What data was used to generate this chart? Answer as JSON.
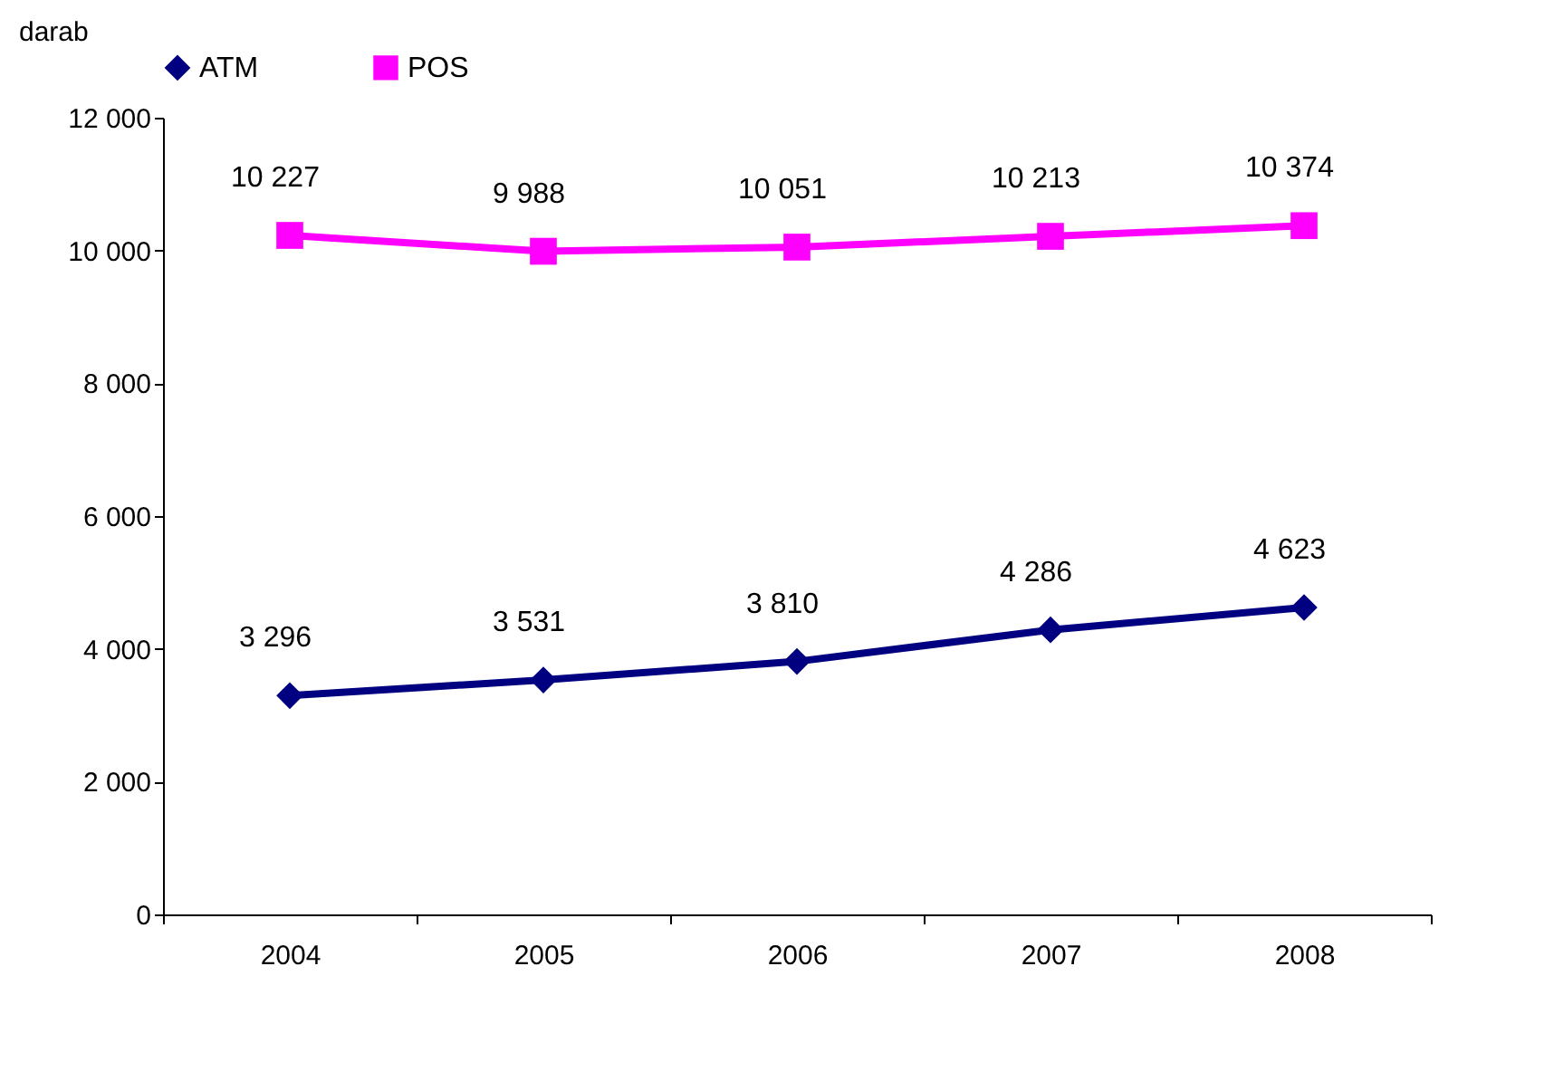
{
  "chart_data": {
    "type": "line",
    "ylabel": "darab",
    "categories": [
      "2004",
      "2005",
      "2006",
      "2007",
      "2008"
    ],
    "series": [
      {
        "name": "ATM",
        "color": "#000080",
        "marker": "diamond",
        "values": [
          3296,
          3531,
          3810,
          4286,
          4623
        ],
        "value_labels": [
          "3 296",
          "3 531",
          "3 810",
          "4 286",
          "4 623"
        ]
      },
      {
        "name": "POS",
        "color": "#ff00ff",
        "marker": "square",
        "values": [
          10227,
          9988,
          10051,
          10213,
          10374
        ],
        "value_labels": [
          "10 227",
          "9 988",
          "10 051",
          "10 213",
          "10 374"
        ]
      }
    ],
    "ylim": [
      0,
      12000
    ],
    "yticks": [
      {
        "value": 0,
        "label": "0"
      },
      {
        "value": 2000,
        "label": "2 000"
      },
      {
        "value": 4000,
        "label": "4 000"
      },
      {
        "value": 6000,
        "label": "6 000"
      },
      {
        "value": 8000,
        "label": "8 000"
      },
      {
        "value": 10000,
        "label": "10 000"
      },
      {
        "value": 12000,
        "label": "12 000"
      }
    ],
    "grid": false,
    "legend": "top",
    "line_style": "solid"
  }
}
